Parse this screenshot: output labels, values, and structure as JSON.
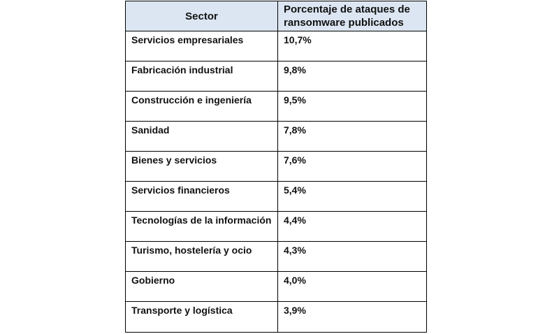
{
  "table": {
    "headers": {
      "sector": "Sector",
      "percentage": "Porcentaje de ataques de ransomware publicados"
    },
    "rows": [
      {
        "sector": "Servicios empresariales",
        "value": "10,7%"
      },
      {
        "sector": "Fabricación industrial",
        "value": "9,8%"
      },
      {
        "sector": "Construcción e ingeniería",
        "value": "9,5%"
      },
      {
        "sector": "Sanidad",
        "value": "7,8%"
      },
      {
        "sector": "Bienes y servicios",
        "value": "7,6%"
      },
      {
        "sector": "Servicios financieros",
        "value": "5,4%"
      },
      {
        "sector": "Tecnologías de la información",
        "value": "4,4%"
      },
      {
        "sector": "Turismo, hostelería y ocio",
        "value": "4,3%"
      },
      {
        "sector": "Gobierno",
        "value": "4,0%"
      },
      {
        "sector": "Transporte y logística",
        "value": "3,9%"
      }
    ]
  },
  "colors": {
    "header_background": "#dce6f2",
    "border": "#000000",
    "text": "#111111"
  }
}
